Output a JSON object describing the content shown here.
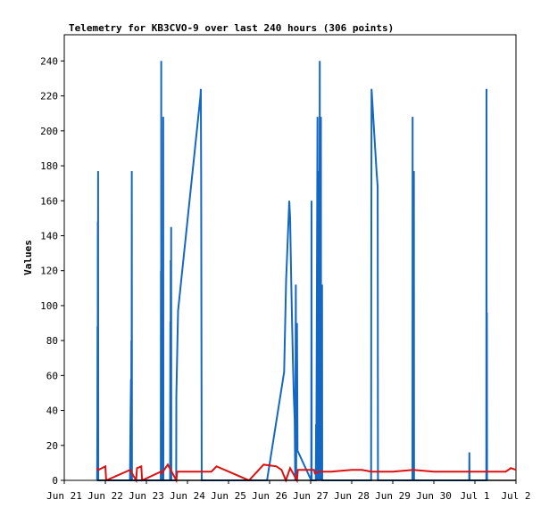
{
  "chart_data": {
    "type": "line",
    "title": "Telemetry for KB3CVO-9 over last 240 hours (306 points)",
    "xlabel": "",
    "ylabel": "Values",
    "xlim": [
      "2025-06-21T00:00",
      "2025-07-02T00:00"
    ],
    "ylim": [
      0,
      255
    ],
    "yticks": [
      0,
      20,
      40,
      60,
      80,
      100,
      120,
      140,
      160,
      180,
      200,
      220,
      240
    ],
    "xticks": [
      "Jun 21",
      "Jun 22",
      "Jun 23",
      "Jun 24",
      "Jun 25",
      "Jun 26",
      "Jun 27",
      "Jun 28",
      "Jun 29",
      "Jun 30",
      "Jul 1",
      "Jul 2"
    ],
    "grid": false,
    "legend": "none",
    "colors": {
      "series1": "#1467c3",
      "series2": "#dd1111",
      "baseline": "#000000"
    },
    "series": [
      {
        "color": "#1467c3",
        "points": [
          [
            "2025-06-21T19:12",
            0
          ],
          [
            "2025-06-21T19:20",
            30
          ],
          [
            "2025-06-21T19:26",
            88
          ],
          [
            "2025-06-21T19:32",
            0
          ],
          [
            "2025-06-21T19:36",
            148
          ],
          [
            "2025-06-21T19:40",
            0
          ],
          [
            "2025-06-21T19:46",
            177
          ],
          [
            "2025-06-21T19:52",
            0
          ],
          [
            "2025-06-22T14:24",
            0
          ],
          [
            "2025-06-22T14:40",
            30
          ],
          [
            "2025-06-22T15:00",
            58
          ],
          [
            "2025-06-22T15:06",
            0
          ],
          [
            "2025-06-22T15:14",
            80
          ],
          [
            "2025-06-22T15:20",
            0
          ],
          [
            "2025-06-22T15:28",
            177
          ],
          [
            "2025-06-22T15:34",
            0
          ],
          [
            "2025-06-23T08:24",
            0
          ],
          [
            "2025-06-23T08:30",
            120
          ],
          [
            "2025-06-23T08:36",
            0
          ],
          [
            "2025-06-23T08:40",
            240
          ],
          [
            "2025-06-23T08:46",
            0
          ],
          [
            "2025-06-23T09:44",
            0
          ],
          [
            "2025-06-23T09:50",
            208
          ],
          [
            "2025-06-23T09:56",
            0
          ],
          [
            "2025-06-23T13:50",
            0
          ],
          [
            "2025-06-23T14:00",
            91
          ],
          [
            "2025-06-23T14:06",
            0
          ],
          [
            "2025-06-23T14:12",
            126
          ],
          [
            "2025-06-23T14:18",
            0
          ],
          [
            "2025-06-23T14:28",
            145
          ],
          [
            "2025-06-23T14:34",
            0
          ],
          [
            "2025-06-23T17:24",
            0
          ],
          [
            "2025-06-23T17:30",
            48
          ],
          [
            "2025-06-23T18:30",
            97
          ],
          [
            "2025-06-24T07:36",
            220
          ],
          [
            "2025-06-24T07:48",
            224
          ],
          [
            "2025-06-24T08:00",
            175
          ],
          [
            "2025-06-24T08:12",
            66
          ],
          [
            "2025-06-24T08:20",
            0
          ],
          [
            "2025-06-25T22:30",
            0
          ],
          [
            "2025-06-26T08:30",
            62
          ],
          [
            "2025-06-26T09:40",
            115
          ],
          [
            "2025-06-26T10:10",
            127
          ],
          [
            "2025-06-26T11:30",
            160
          ],
          [
            "2025-06-26T12:00",
            150
          ],
          [
            "2025-06-26T12:40",
            113
          ],
          [
            "2025-06-26T13:10",
            89
          ],
          [
            "2025-06-26T13:40",
            67
          ],
          [
            "2025-06-26T14:10",
            48
          ],
          [
            "2025-06-26T14:40",
            35
          ],
          [
            "2025-06-26T15:00",
            0
          ],
          [
            "2025-06-26T15:20",
            112
          ],
          [
            "2025-06-26T15:30",
            0
          ],
          [
            "2025-06-26T16:00",
            90
          ],
          [
            "2025-06-26T16:20",
            17
          ],
          [
            "2025-06-27T00:20",
            0
          ],
          [
            "2025-06-27T00:30",
            160
          ],
          [
            "2025-06-27T00:36",
            0
          ],
          [
            "2025-06-27T03:00",
            0
          ],
          [
            "2025-06-27T03:10",
            32
          ],
          [
            "2025-06-27T03:16",
            0
          ],
          [
            "2025-06-27T04:00",
            208
          ],
          [
            "2025-06-27T04:06",
            0
          ],
          [
            "2025-06-27T04:30",
            177
          ],
          [
            "2025-06-27T04:36",
            0
          ],
          [
            "2025-06-27T04:50",
            104
          ],
          [
            "2025-06-27T04:56",
            0
          ],
          [
            "2025-06-27T05:20",
            240
          ],
          [
            "2025-06-27T05:26",
            0
          ],
          [
            "2025-06-27T06:00",
            208
          ],
          [
            "2025-06-27T06:06",
            0
          ],
          [
            "2025-06-27T06:40",
            112
          ],
          [
            "2025-06-27T06:46",
            0
          ],
          [
            "2025-06-28T11:20",
            0
          ],
          [
            "2025-06-28T11:26",
            112
          ],
          [
            "2025-06-28T11:36",
            224
          ],
          [
            "2025-06-28T13:30",
            193
          ],
          [
            "2025-06-28T14:30",
            177
          ],
          [
            "2025-06-28T15:10",
            168
          ],
          [
            "2025-06-28T15:20",
            0
          ],
          [
            "2025-06-29T11:30",
            0
          ],
          [
            "2025-06-29T11:36",
            208
          ],
          [
            "2025-06-29T11:42",
            0
          ],
          [
            "2025-06-29T12:20",
            177
          ],
          [
            "2025-06-29T12:26",
            0
          ],
          [
            "2025-06-30T20:40",
            0
          ],
          [
            "2025-06-30T20:46",
            16
          ],
          [
            "2025-06-30T20:52",
            0
          ],
          [
            "2025-07-01T06:40",
            0
          ],
          [
            "2025-07-01T06:46",
            224
          ],
          [
            "2025-07-01T06:52",
            0
          ],
          [
            "2025-07-01T07:00",
            96
          ],
          [
            "2025-07-01T07:06",
            0
          ]
        ]
      },
      {
        "color": "#dd1111",
        "points": [
          [
            "2025-06-21T19:00",
            7
          ],
          [
            "2025-06-21T20:00",
            6
          ],
          [
            "2025-06-22T00:00",
            8
          ],
          [
            "2025-06-22T00:30",
            0
          ],
          [
            "2025-06-22T14:30",
            6
          ],
          [
            "2025-06-22T15:00",
            5
          ],
          [
            "2025-06-22T18:00",
            0
          ],
          [
            "2025-06-22T18:30",
            7
          ],
          [
            "2025-06-22T21:00",
            8
          ],
          [
            "2025-06-22T21:30",
            0
          ],
          [
            "2025-06-23T08:30",
            5
          ],
          [
            "2025-06-23T09:00",
            4
          ],
          [
            "2025-06-23T12:30",
            9
          ],
          [
            "2025-06-23T17:30",
            0
          ],
          [
            "2025-06-23T18:00",
            5
          ],
          [
            "2025-06-24T09:30",
            5
          ],
          [
            "2025-06-24T14:00",
            5
          ],
          [
            "2025-06-24T17:00",
            8
          ],
          [
            "2025-06-25T12:00",
            0
          ],
          [
            "2025-06-25T20:30",
            9
          ],
          [
            "2025-06-26T04:00",
            8
          ],
          [
            "2025-06-26T07:00",
            6
          ],
          [
            "2025-06-26T09:30",
            0
          ],
          [
            "2025-06-26T12:00",
            7
          ],
          [
            "2025-06-26T16:00",
            0
          ],
          [
            "2025-06-26T16:30",
            6
          ],
          [
            "2025-06-27T02:00",
            6
          ],
          [
            "2025-06-27T02:30",
            4
          ],
          [
            "2025-06-27T05:00",
            5
          ],
          [
            "2025-06-27T12:00",
            5
          ],
          [
            "2025-06-28T00:00",
            6
          ],
          [
            "2025-06-28T06:00",
            6
          ],
          [
            "2025-06-28T11:30",
            5
          ],
          [
            "2025-06-29T00:00",
            5
          ],
          [
            "2025-06-29T12:00",
            6
          ],
          [
            "2025-06-30T00:00",
            5
          ],
          [
            "2025-06-30T12:00",
            5
          ],
          [
            "2025-07-01T00:00",
            5
          ],
          [
            "2025-07-01T12:00",
            5
          ],
          [
            "2025-07-01T18:00",
            5
          ],
          [
            "2025-07-01T21:00",
            7
          ],
          [
            "2025-07-02T00:00",
            6
          ]
        ]
      },
      {
        "color": "#000000",
        "points": [
          [
            "2025-06-21T19:00",
            0
          ],
          [
            "2025-07-02T00:00",
            0
          ]
        ]
      }
    ]
  }
}
